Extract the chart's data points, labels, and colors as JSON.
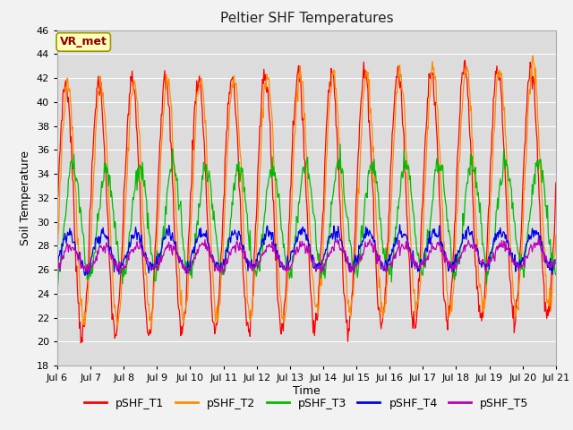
{
  "title": "Peltier SHF Temperatures",
  "xlabel": "Time",
  "ylabel": "Soil Temperature",
  "ylim": [
    18,
    46
  ],
  "yticks": [
    18,
    20,
    22,
    24,
    26,
    28,
    30,
    32,
    34,
    36,
    38,
    40,
    42,
    44,
    46
  ],
  "xtick_labels": [
    "Jul 6",
    "Jul 7",
    "Jul 8",
    "Jul 9",
    "Jul 10",
    "Jul 11",
    "Jul 12",
    "Jul 13",
    "Jul 14",
    "Jul 15",
    "Jul 16",
    "Jul 17",
    "Jul 18",
    "Jul 19",
    "Jul 20",
    "Jul 21"
  ],
  "annotation": "VR_met",
  "annotation_color": "#8B0000",
  "annotation_bg": "#FFFFBB",
  "annotation_border": "#999900",
  "series": [
    {
      "label": "pSHF_T1",
      "color": "#FF0000",
      "base": 31.0,
      "amp": 10.5,
      "phase": 0.0,
      "trend": 0.1,
      "noise": 0.5
    },
    {
      "label": "pSHF_T2",
      "color": "#FF8C00",
      "base": 31.5,
      "amp": 10.0,
      "phase": 0.12,
      "trend": 0.1,
      "noise": 0.5
    },
    {
      "label": "pSHF_T3",
      "color": "#00BB00",
      "base": 30.0,
      "amp": 4.5,
      "phase": 0.45,
      "trend": 0.04,
      "noise": 0.5
    },
    {
      "label": "pSHF_T4",
      "color": "#0000EE",
      "base": 27.5,
      "amp": 1.5,
      "phase": 0.2,
      "trend": 0.02,
      "noise": 0.3
    },
    {
      "label": "pSHF_T5",
      "color": "#BB00BB",
      "base": 27.0,
      "amp": 1.0,
      "phase": 0.3,
      "trend": 0.015,
      "noise": 0.25
    }
  ],
  "plot_bg_color": "#DCDCDC",
  "fig_bg_color": "#F2F2F2",
  "grid_color": "#FFFFFF",
  "font_family": "DejaVu Sans",
  "title_fontsize": 11,
  "legend_fontsize": 9,
  "tick_fontsize": 8,
  "ylabel_fontsize": 9
}
